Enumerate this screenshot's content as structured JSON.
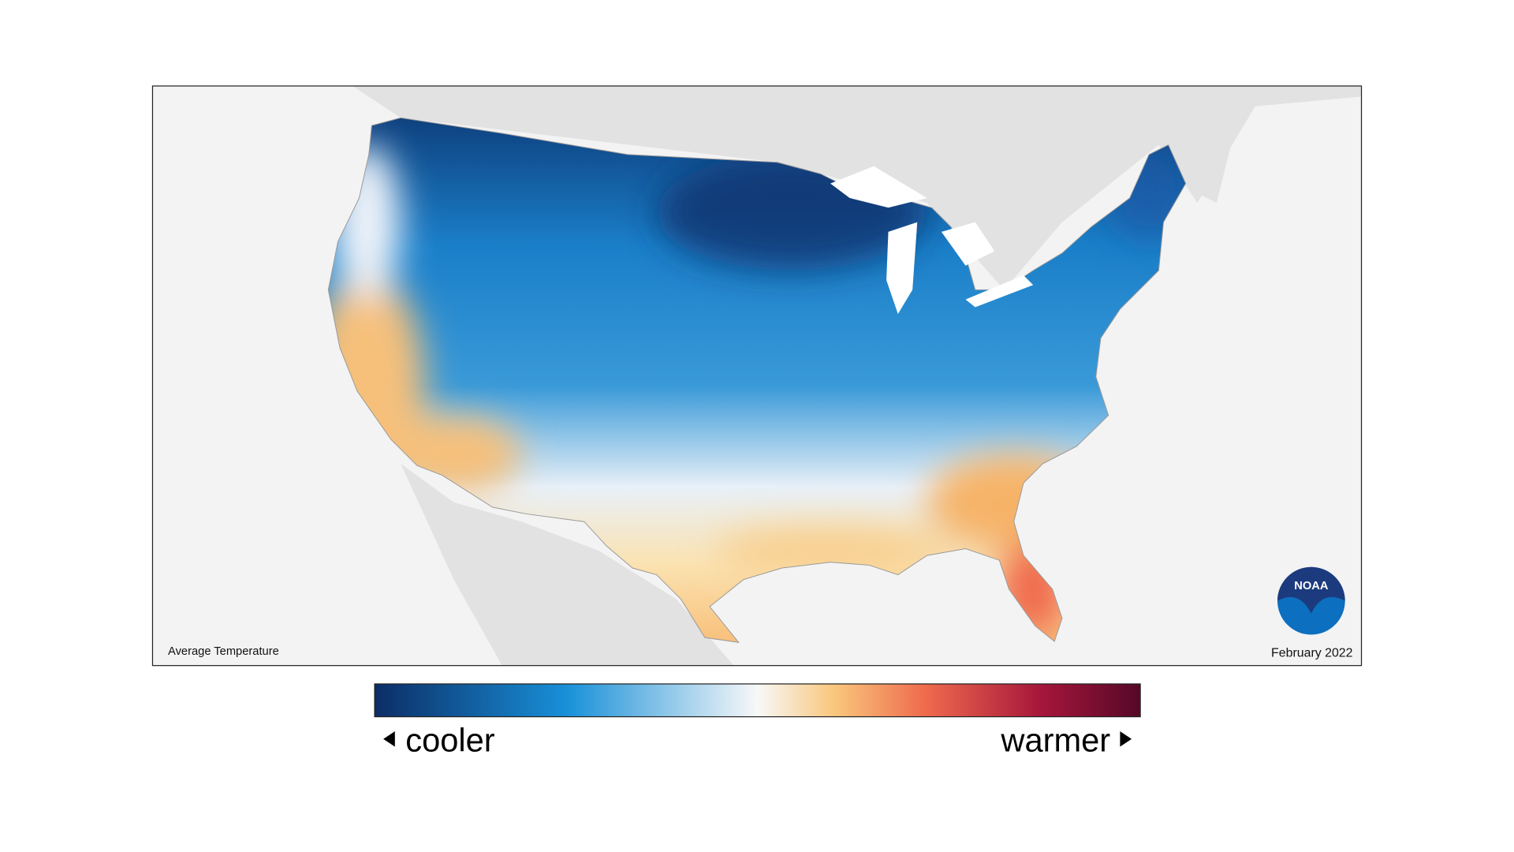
{
  "map": {
    "title": "Average Temperature",
    "date": "February 2022",
    "logo": "NOAA"
  },
  "legend": {
    "low_label": "cooler",
    "high_label": "warmer"
  }
}
